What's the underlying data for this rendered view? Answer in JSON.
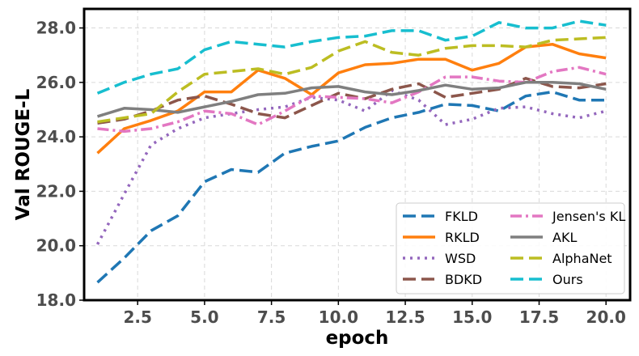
{
  "chart_data": {
    "type": "line",
    "xlabel": "epoch",
    "ylabel": "Val ROUGE-L",
    "xlim": [
      0.5,
      20.9
    ],
    "ylim": [
      18.0,
      28.7
    ],
    "xticks": [
      2.5,
      5.0,
      7.5,
      10.0,
      12.5,
      15.0,
      17.5,
      20.0
    ],
    "xtick_labels": [
      "2.5",
      "5.0",
      "7.5",
      "10.0",
      "12.5",
      "15.0",
      "17.5",
      "20.0"
    ],
    "yticks": [
      18.0,
      20.0,
      22.0,
      24.0,
      26.0,
      28.0
    ],
    "ytick_labels": [
      "18.0",
      "20.0",
      "22.0",
      "24.0",
      "26.0",
      "28.0"
    ],
    "grid": true,
    "legend_position": "lower-right",
    "legend_columns": 2,
    "x": [
      1,
      2,
      3,
      4,
      5,
      6,
      7,
      8,
      9,
      10,
      11,
      12,
      13,
      14,
      15,
      16,
      17,
      18,
      19,
      20
    ],
    "series": [
      {
        "name": "FKLD",
        "color": "#1f77b4",
        "style": "dashed",
        "values": [
          18.65,
          19.55,
          20.55,
          21.1,
          22.35,
          22.8,
          22.7,
          23.4,
          23.65,
          23.85,
          24.35,
          24.7,
          24.9,
          25.2,
          25.15,
          24.95,
          25.5,
          25.65,
          25.35,
          25.35
        ]
      },
      {
        "name": "RKLD",
        "color": "#ff7f0e",
        "style": "solid",
        "values": [
          23.4,
          24.3,
          24.6,
          24.95,
          25.65,
          25.65,
          26.45,
          26.15,
          25.55,
          26.35,
          26.65,
          26.7,
          26.85,
          26.85,
          26.45,
          26.7,
          27.3,
          27.4,
          27.05,
          26.9
        ]
      },
      {
        "name": "WSD",
        "color": "#9467bd",
        "style": "dotted",
        "values": [
          20.05,
          21.9,
          23.7,
          24.3,
          24.7,
          24.85,
          25.0,
          25.1,
          25.45,
          25.35,
          24.95,
          25.7,
          25.35,
          24.45,
          24.65,
          25.05,
          25.1,
          24.85,
          24.7,
          24.95
        ]
      },
      {
        "name": "BDKD",
        "color": "#8c564b",
        "style": "dashed",
        "values": [
          24.5,
          24.65,
          24.95,
          25.35,
          25.5,
          25.2,
          24.85,
          24.7,
          25.15,
          25.6,
          25.4,
          25.75,
          25.95,
          25.45,
          25.6,
          25.75,
          26.15,
          25.85,
          25.8,
          25.95
        ]
      },
      {
        "name": "Jensen's KL",
        "color": "#e377c2",
        "style": "dashdot",
        "values": [
          24.3,
          24.2,
          24.3,
          24.55,
          24.95,
          24.85,
          24.45,
          24.95,
          25.5,
          25.45,
          25.4,
          25.25,
          25.65,
          26.2,
          26.2,
          26.05,
          26.0,
          26.4,
          26.55,
          26.3
        ]
      },
      {
        "name": "AKL",
        "color": "#7f7f7f",
        "style": "solid",
        "values": [
          24.75,
          25.05,
          25.0,
          24.9,
          25.1,
          25.3,
          25.55,
          25.6,
          25.8,
          25.85,
          25.65,
          25.55,
          25.7,
          25.9,
          25.75,
          25.8,
          26.0,
          26.0,
          25.95,
          25.75
        ]
      },
      {
        "name": "AlphaNet",
        "color": "#bcbd22",
        "style": "dashed",
        "values": [
          24.55,
          24.7,
          24.85,
          25.65,
          26.3,
          26.4,
          26.5,
          26.3,
          26.55,
          27.15,
          27.5,
          27.1,
          27.0,
          27.25,
          27.35,
          27.35,
          27.3,
          27.55,
          27.6,
          27.65
        ]
      },
      {
        "name": "Ours",
        "color": "#17becf",
        "style": "dashed",
        "values": [
          25.6,
          26.0,
          26.3,
          26.5,
          27.2,
          27.5,
          27.4,
          27.3,
          27.5,
          27.65,
          27.7,
          27.9,
          27.9,
          27.55,
          27.7,
          28.2,
          28.0,
          28.0,
          28.25,
          28.1
        ]
      }
    ]
  }
}
